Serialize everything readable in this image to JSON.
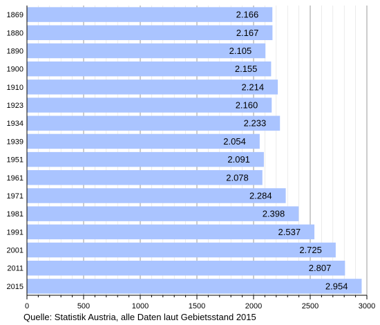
{
  "chart_data": {
    "type": "bar",
    "orientation": "horizontal",
    "categories": [
      "1869",
      "1880",
      "1890",
      "1900",
      "1910",
      "1923",
      "1934",
      "1939",
      "1951",
      "1961",
      "1971",
      "1981",
      "1991",
      "2001",
      "2011",
      "2015"
    ],
    "values": [
      2166,
      2167,
      2105,
      2155,
      2214,
      2160,
      2233,
      2054,
      2091,
      2078,
      2284,
      2398,
      2537,
      2725,
      2807,
      2954
    ],
    "value_labels": [
      "2.166",
      "2.167",
      "2.105",
      "2.155",
      "2.214",
      "2.160",
      "2.233",
      "2.054",
      "2.091",
      "2.078",
      "2.284",
      "2.398",
      "2.537",
      "2.725",
      "2.807",
      "2.954"
    ],
    "xlim": [
      0,
      3000
    ],
    "x_ticks": [
      "0",
      "500",
      "1000",
      "1500",
      "2000",
      "2500",
      "3000"
    ],
    "grid": true,
    "bar_color": "#aac4ff",
    "gridline_color": "#999999",
    "source": "Quelle: Statistik Austria, alle Daten laut Gebietsstand 2015"
  }
}
